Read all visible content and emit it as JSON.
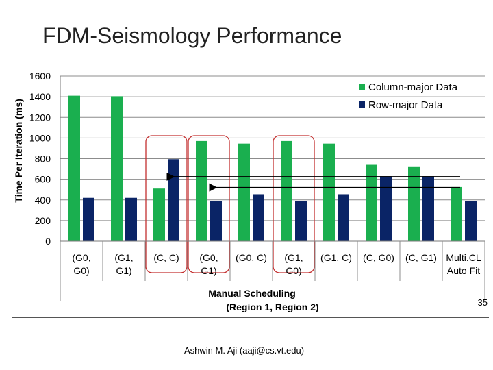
{
  "slide": {
    "title": "FDM-Seismology Performance",
    "page_number": "35",
    "author": "Ashwin M. Aji (aaji@cs.vt.edu)"
  },
  "colors": {
    "column_major": "#1aaf4f",
    "row_major": "#0a2466",
    "highlight_outline": "#c43030",
    "arrow": "#000000"
  },
  "chart_data": {
    "type": "bar",
    "title": "",
    "ylabel": "Time Per Iteration (ms)",
    "xlabel": "Manual Scheduling\n(Region 1, Region 2)",
    "ylim": [
      0,
      1600
    ],
    "yticks": [
      "0",
      "200",
      "400",
      "600",
      "800",
      "1000",
      "1200",
      "1400",
      "1600"
    ],
    "grid": true,
    "legend_position": "top-right",
    "categories": [
      "(G0,\nG0)",
      "(G1,\nG1)",
      "(C, C)",
      "(G0,\nG1)",
      "(G0, C)",
      "(G1,\nG0)",
      "(G1, C)",
      "(C, G0)",
      "(C, G1)",
      "Multi.CL\nAuto Fit"
    ],
    "series": [
      {
        "name": "Column-major Data",
        "values": [
          1410,
          1405,
          510,
          970,
          945,
          970,
          945,
          740,
          725,
          525
        ]
      },
      {
        "name": "Row-major Data",
        "values": [
          420,
          420,
          795,
          390,
          455,
          390,
          455,
          630,
          630,
          390
        ]
      }
    ],
    "highlighted_categories": [
      "(C, C)",
      "(G0,\nG1)",
      "(G1,\nG0)"
    ],
    "annotations": [
      {
        "type": "arrow",
        "from_category": "Multi.CL\nAuto Fit",
        "to_category": "(C, C)",
        "y": 625
      },
      {
        "type": "arrow",
        "from_category": "Multi.CL\nAuto Fit",
        "to_category": "(G0,\nG1)",
        "y": 520
      }
    ]
  }
}
